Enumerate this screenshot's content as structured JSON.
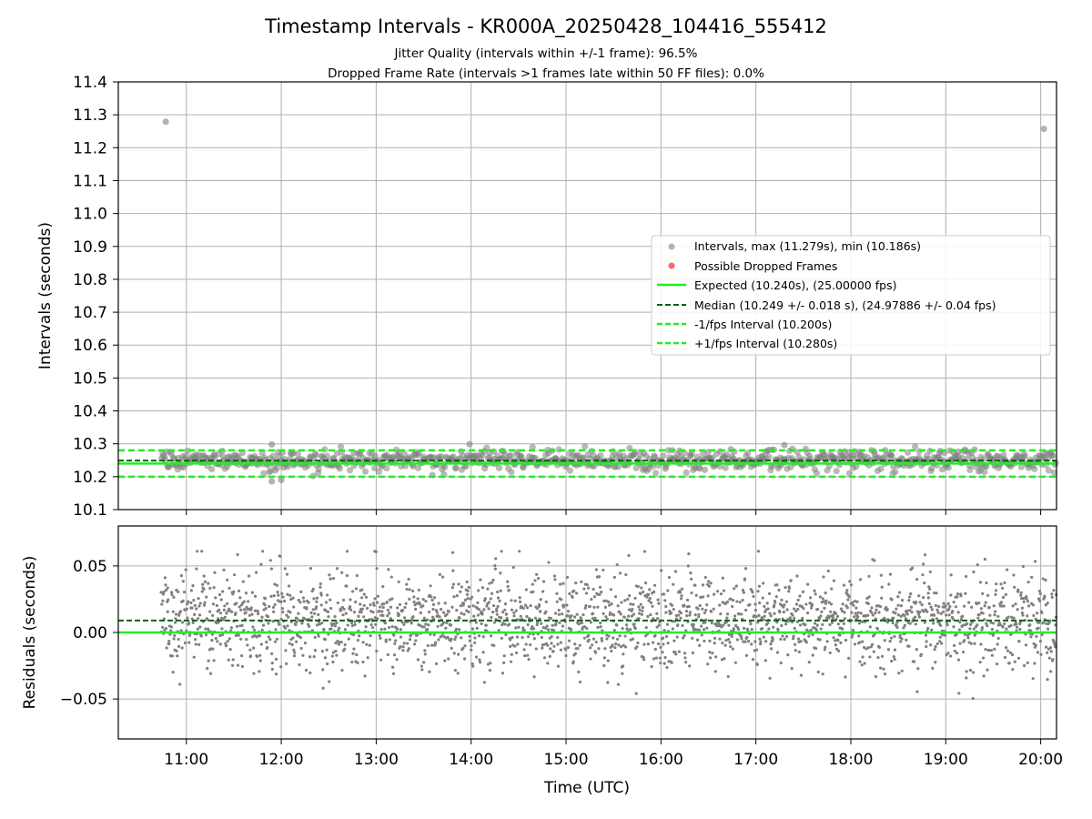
{
  "figure": {
    "title": "Timestamp Intervals - KR000A_20250428_104416_555412",
    "subtitle_1": "Jitter Quality (intervals within +/-1 frame): 96.5%",
    "subtitle_2": "Dropped Frame Rate (intervals >1 frames late within 50 FF files): 0.0%"
  },
  "colors": {
    "points": "#808080",
    "dropped": "#ff4040",
    "expected": "#22ee22",
    "median": "#006400",
    "band": "#22ee22",
    "grid": "#b0b0b0"
  },
  "chart_data": [
    {
      "type": "scatter",
      "ylabel": "Intervals (seconds)",
      "xlim": [
        "10:17",
        "20:10"
      ],
      "ylim": [
        10.1,
        11.4
      ],
      "grid": true,
      "y_ticks": [
        "10.1",
        "10.2",
        "10.3",
        "10.4",
        "10.5",
        "10.6",
        "10.7",
        "10.8",
        "10.9",
        "11.0",
        "11.1",
        "11.2",
        "11.3",
        "11.4"
      ],
      "x_ticks": [
        "11:00",
        "12:00",
        "13:00",
        "14:00",
        "15:00",
        "16:00",
        "17:00",
        "18:00",
        "19:00",
        "20:00"
      ],
      "legend_position": "center-right",
      "series": [
        {
          "name": "Intervals, max (11.279s), min (10.186s)",
          "kind": "points",
          "max": 11.279,
          "min": 10.186,
          "range": [
            "10:44",
            "20:10"
          ],
          "band": [
            10.2,
            10.3
          ]
        },
        {
          "name": "Possible Dropped Frames",
          "kind": "points",
          "count": 0
        },
        {
          "name": "Expected (10.240s), (25.00000 fps)",
          "kind": "hline",
          "y": 10.24
        },
        {
          "name": "Median (10.249 +/- 0.018 s), (24.97886 +/- 0.04 fps)",
          "kind": "hline",
          "y": 10.249
        },
        {
          "name": "-1/fps Interval (10.200s)",
          "kind": "hline",
          "y": 10.2
        },
        {
          "name": "+1/fps Interval (10.280s)",
          "kind": "hline",
          "y": 10.28
        }
      ],
      "outliers": [
        {
          "x": "10:47",
          "y": 11.279
        },
        {
          "x": "20:02",
          "y": 11.257
        },
        {
          "x": "11:54",
          "y": 10.298
        },
        {
          "x": "13:59",
          "y": 10.299
        },
        {
          "x": "17:18",
          "y": 10.296
        },
        {
          "x": "11:54",
          "y": 10.186
        },
        {
          "x": "12:00",
          "y": 10.19
        }
      ]
    },
    {
      "type": "scatter",
      "ylabel": "Residuals (seconds)",
      "xlabel": "Time (UTC)",
      "xlim": [
        "10:17",
        "20:10"
      ],
      "ylim": [
        -0.08,
        0.08
      ],
      "grid": true,
      "y_ticks": [
        "0.05",
        "0.00",
        "−0.05"
      ],
      "x_ticks": [
        "11:00",
        "12:00",
        "13:00",
        "14:00",
        "15:00",
        "16:00",
        "17:00",
        "18:00",
        "19:00",
        "20:00"
      ],
      "series": [
        {
          "name": "Residuals",
          "kind": "points",
          "range": [
            "10:44",
            "20:10"
          ],
          "spread": [
            -0.054,
            0.061
          ]
        },
        {
          "name": "Expected",
          "kind": "hline",
          "y": 0.0
        },
        {
          "name": "Median",
          "kind": "hline",
          "y": 0.009
        }
      ]
    }
  ]
}
